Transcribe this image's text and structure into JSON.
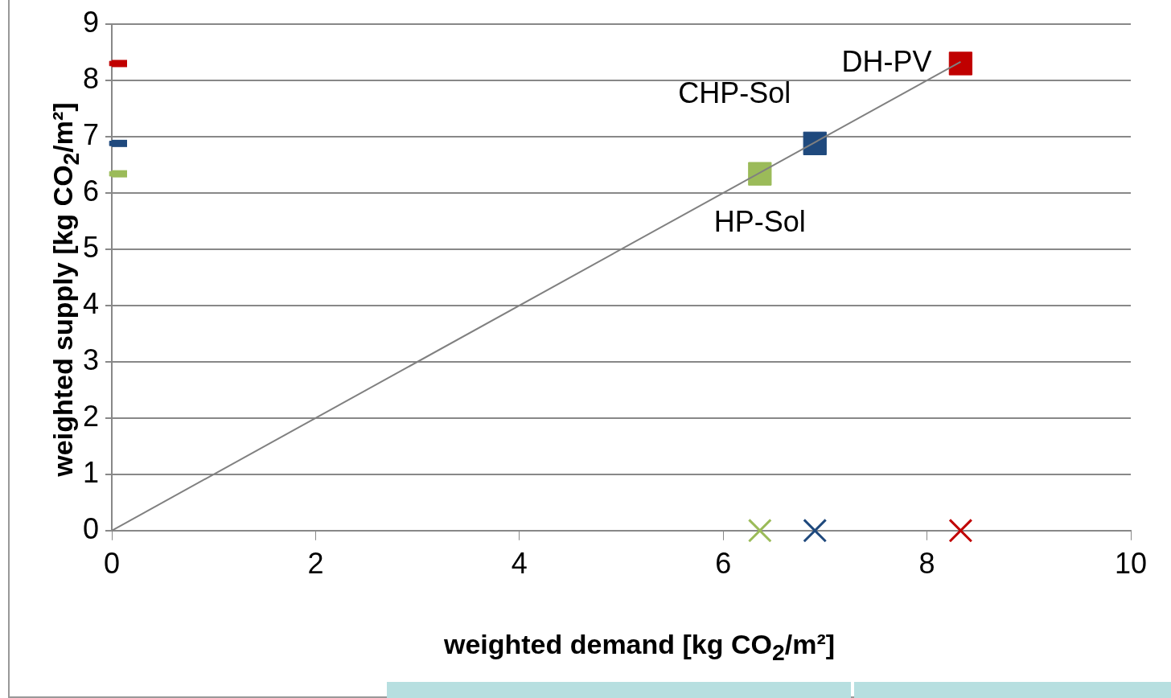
{
  "chart_data": {
    "type": "scatter",
    "xlabel": "weighted demand  [kg CO$_{2}$/m²]",
    "ylabel": "weighted supply  [kg CO$_{2}$/m²]",
    "xlim": [
      0,
      10
    ],
    "xticks": [
      0,
      2,
      4,
      6,
      8,
      10
    ],
    "ylim": [
      0,
      9
    ],
    "yticks": [
      0,
      1,
      2,
      3,
      4,
      5,
      6,
      7,
      8,
      9
    ],
    "grid": "y",
    "legend": false,
    "series": [
      {
        "type": "line",
        "color": "#808080",
        "marker": "none",
        "x": [
          0,
          8.33
        ],
        "values": [
          0,
          8.33
        ]
      },
      {
        "name": "HP-Sol",
        "color": "#9bbb59",
        "marker": "square",
        "x": [
          6.36
        ],
        "values": [
          6.34
        ]
      },
      {
        "name": "CHP-Sol",
        "color": "#1f497d",
        "marker": "square",
        "x": [
          6.9
        ],
        "values": [
          6.88
        ]
      },
      {
        "name": "DH-PV",
        "color": "#c00000",
        "marker": "square",
        "x": [
          8.33
        ],
        "values": [
          8.3
        ]
      },
      {
        "color": "#9bbb59",
        "marker": "cross",
        "x": [
          6.36
        ],
        "values": [
          0
        ]
      },
      {
        "color": "#1f497d",
        "marker": "cross",
        "x": [
          6.9
        ],
        "values": [
          0
        ]
      },
      {
        "color": "#c00000",
        "marker": "cross",
        "x": [
          8.33
        ],
        "values": [
          0
        ]
      },
      {
        "color": "#c00000",
        "marker": "square",
        "x": [
          0
        ],
        "values": [
          8.3
        ],
        "xerrors": [
          [
            0,
            0.15
          ]
        ]
      },
      {
        "color": "#1f497d",
        "marker": "square",
        "x": [
          0
        ],
        "values": [
          6.88
        ],
        "xerrors": [
          [
            0,
            0.15
          ]
        ]
      },
      {
        "color": "#9bbb59",
        "marker": "square",
        "x": [
          0
        ],
        "values": [
          6.34
        ],
        "xerrors": [
          [
            0,
            0.15
          ]
        ]
      }
    ]
  }
}
